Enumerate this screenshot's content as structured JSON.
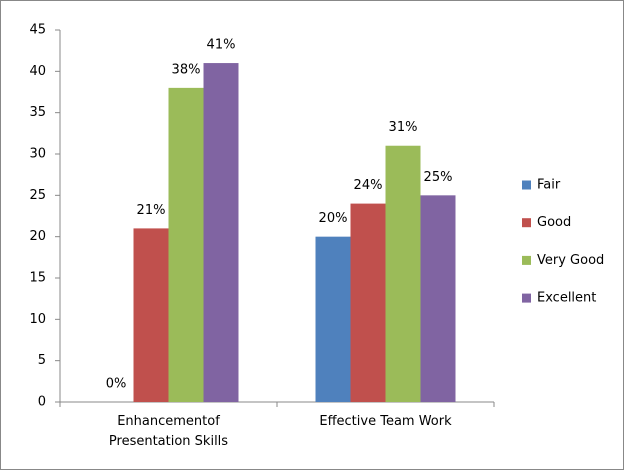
{
  "chart_data": {
    "type": "bar",
    "categories": [
      "Enhancementof Presentation Skills",
      "Effective Team Work"
    ],
    "series": [
      {
        "name": "Fair",
        "color": "#4f81bd",
        "values": [
          0,
          20
        ],
        "value_labels": [
          "0%",
          "20%"
        ]
      },
      {
        "name": "Good",
        "color": "#c0504d",
        "values": [
          21,
          24
        ],
        "value_labels": [
          "21%",
          "24%"
        ]
      },
      {
        "name": "Very Good",
        "color": "#9bbb59",
        "values": [
          38,
          31
        ],
        "value_labels": [
          "38%",
          "31%"
        ]
      },
      {
        "name": "Excellent",
        "color": "#8064a2",
        "values": [
          41,
          25
        ],
        "value_labels": [
          "41%",
          "25%"
        ]
      }
    ],
    "ylim": [
      0,
      45
    ],
    "yticks": [
      0,
      5,
      10,
      15,
      20,
      25,
      30,
      35,
      40,
      45
    ],
    "grid": false,
    "legend": "right"
  }
}
